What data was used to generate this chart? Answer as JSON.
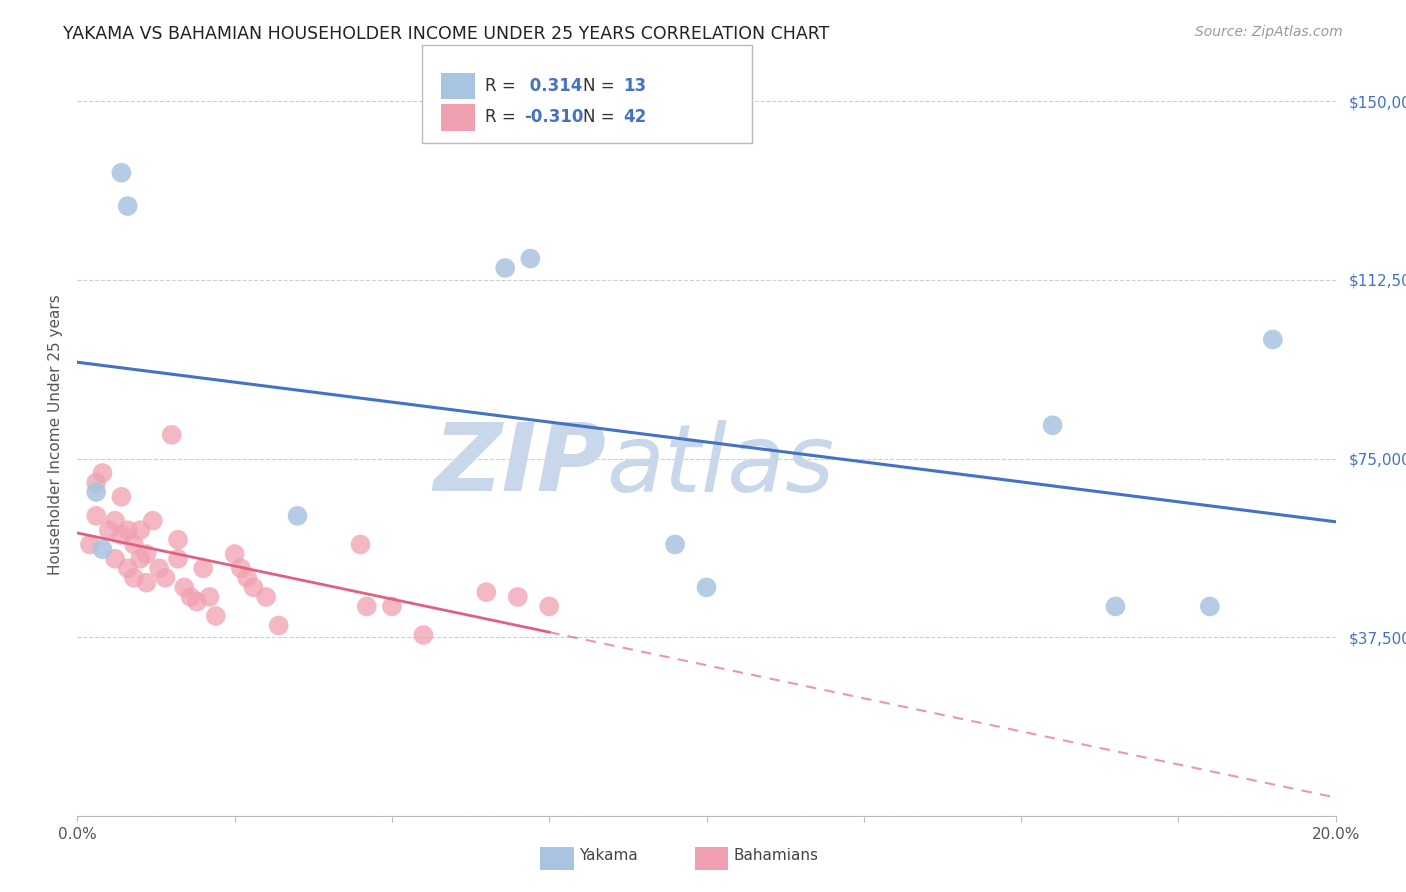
{
  "title": "YAKAMA VS BAHAMIAN HOUSEHOLDER INCOME UNDER 25 YEARS CORRELATION CHART",
  "source": "Source: ZipAtlas.com",
  "ylabel": "Householder Income Under 25 years",
  "xmin": 0.0,
  "xmax": 0.2,
  "ymin": 0,
  "ymax": 160000,
  "yticks": [
    0,
    37500,
    75000,
    112500,
    150000
  ],
  "ytick_labels": [
    "",
    "$37,500",
    "$75,000",
    "$112,500",
    "$150,000"
  ],
  "xticks": [
    0.0,
    0.025,
    0.05,
    0.075,
    0.1,
    0.125,
    0.15,
    0.175,
    0.2
  ],
  "xtick_labels": [
    "0.0%",
    "",
    "",
    "",
    "",
    "",
    "",
    "",
    "20.0%"
  ],
  "yakama_R": 0.314,
  "yakama_N": 13,
  "bahamian_R": -0.31,
  "bahamian_N": 42,
  "yakama_color": "#a8c4e0",
  "bahamian_color": "#f0a0b0",
  "yakama_line_color": "#4472c4",
  "bahamian_line_color": "#e06080",
  "watermark_top": "ZIP",
  "watermark_bot": "atlas",
  "watermark_color": "#c8d8ea",
  "background_color": "#ffffff",
  "grid_color": "#c8d0d8",
  "yakama_x": [
    0.007,
    0.008,
    0.003,
    0.004,
    0.035,
    0.068,
    0.072,
    0.095,
    0.1,
    0.155,
    0.165,
    0.18,
    0.19
  ],
  "yakama_y": [
    135000,
    128000,
    68000,
    56000,
    63000,
    115000,
    117000,
    57000,
    48000,
    82000,
    44000,
    44000,
    100000
  ],
  "bahamian_x": [
    0.002,
    0.003,
    0.003,
    0.004,
    0.005,
    0.006,
    0.006,
    0.007,
    0.007,
    0.008,
    0.008,
    0.009,
    0.009,
    0.01,
    0.01,
    0.011,
    0.011,
    0.012,
    0.013,
    0.014,
    0.015,
    0.016,
    0.016,
    0.017,
    0.018,
    0.019,
    0.02,
    0.021,
    0.022,
    0.025,
    0.026,
    0.027,
    0.028,
    0.03,
    0.032,
    0.045,
    0.046,
    0.05,
    0.055,
    0.065,
    0.07,
    0.075
  ],
  "bahamian_y": [
    57000,
    63000,
    70000,
    72000,
    60000,
    54000,
    62000,
    59000,
    67000,
    52000,
    60000,
    50000,
    57000,
    54000,
    60000,
    49000,
    55000,
    62000,
    52000,
    50000,
    80000,
    54000,
    58000,
    48000,
    46000,
    45000,
    52000,
    46000,
    42000,
    55000,
    52000,
    50000,
    48000,
    46000,
    40000,
    57000,
    44000,
    44000,
    38000,
    47000,
    46000,
    44000
  ]
}
